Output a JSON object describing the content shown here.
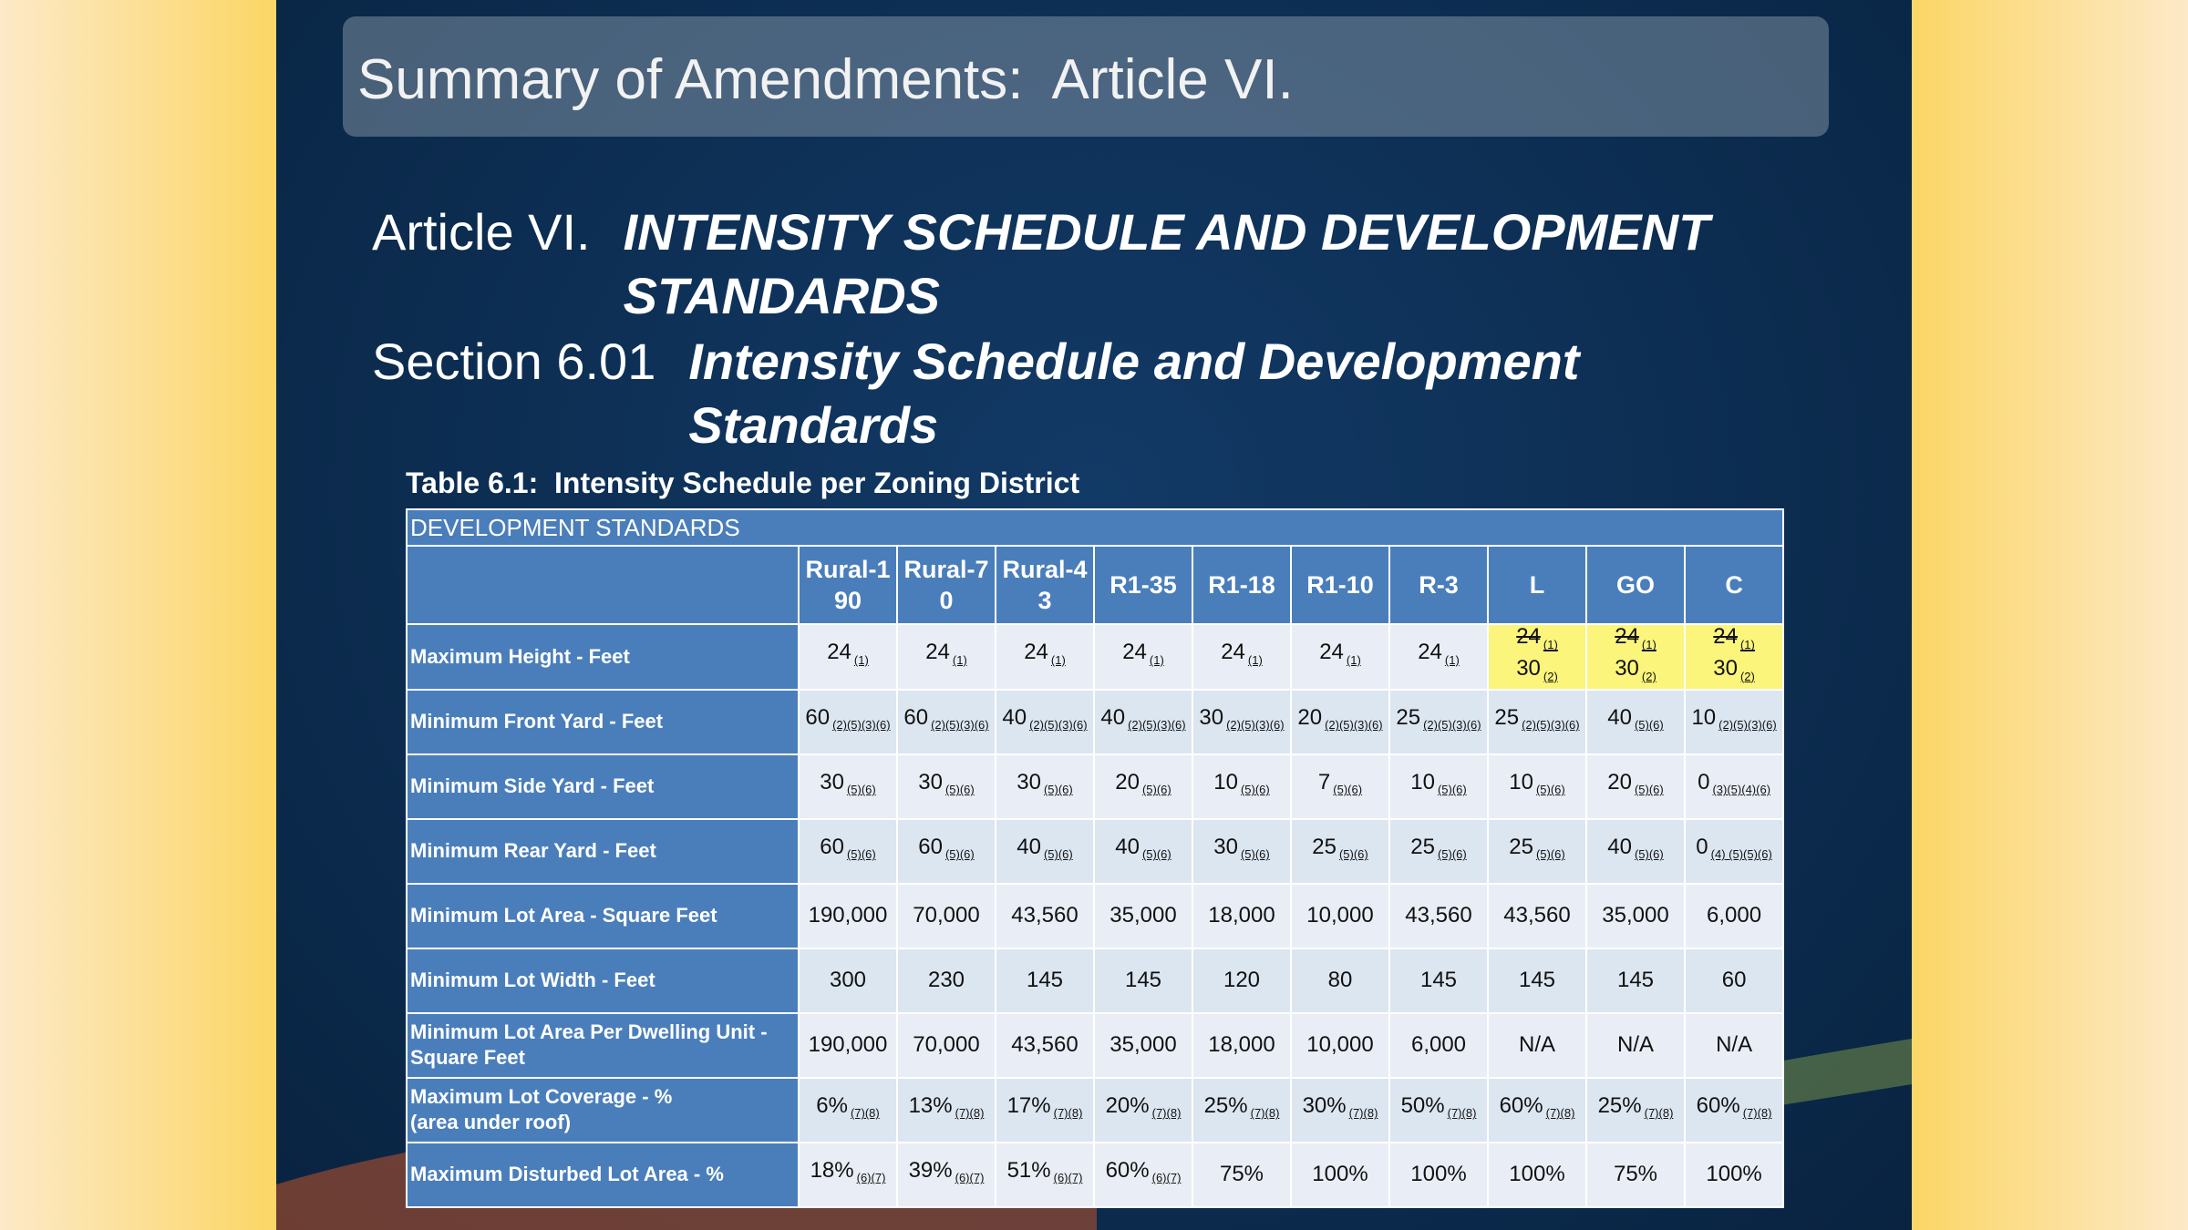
{
  "title": "Summary of Amendments:  Article VI.",
  "article": {
    "label": "Article VI.",
    "title": "INTENSITY SCHEDULE AND DEVELOPMENT STANDARDS"
  },
  "section": {
    "label": "Section 6.01",
    "title": "Intensity Schedule and Development Standards"
  },
  "table": {
    "caption": "Table 6.1:  Intensity Schedule per Zoning District",
    "header": "DEVELOPMENT STANDARDS",
    "columns": [
      "Rural-190",
      "Rural-70",
      "Rural-43",
      "R1-35",
      "R1-18",
      "R1-10",
      "R-3",
      "L",
      "GO",
      "C"
    ],
    "rows": [
      {
        "label": "Maximum Height - Feet",
        "cells": [
          {
            "text": "24",
            "note": "(1)"
          },
          {
            "text": "24",
            "note": "(1)"
          },
          {
            "text": "24",
            "note": "(1)"
          },
          {
            "text": "24",
            "note": "(1)"
          },
          {
            "text": "24",
            "note": "(1)"
          },
          {
            "text": "24",
            "note": "(1)"
          },
          {
            "text": "24",
            "note": "(1)"
          },
          {
            "old": {
              "text": "24",
              "note": "(1)"
            },
            "text": "30",
            "note": "(2)",
            "highlight": true
          },
          {
            "old": {
              "text": "24",
              "note": "(1)"
            },
            "text": "30",
            "note": "(2)",
            "highlight": true
          },
          {
            "old": {
              "text": "24",
              "note": "(1)"
            },
            "text": "30",
            "note": "(2)",
            "highlight": true
          }
        ]
      },
      {
        "label": "Minimum Front Yard - Feet",
        "cells": [
          {
            "text": "60",
            "note": "(2)(5)(3)(6)"
          },
          {
            "text": "60",
            "note": "(2)(5)(3)(6)"
          },
          {
            "text": "40",
            "note": "(2)(5)(3)(6)"
          },
          {
            "text": "40",
            "note": "(2)(5)(3)(6)"
          },
          {
            "text": "30",
            "note": "(2)(5)(3)(6)"
          },
          {
            "text": "20",
            "note": "(2)(5)(3)(6)"
          },
          {
            "text": "25",
            "note": "(2)(5)(3)(6)"
          },
          {
            "text": "25",
            "note": "(2)(5)(3)(6)"
          },
          {
            "text": "40",
            "note": "(5)(6)"
          },
          {
            "text": "10",
            "note": "(2)(5)(3)(6)"
          }
        ]
      },
      {
        "label": "Minimum Side Yard - Feet",
        "cells": [
          {
            "text": "30",
            "note": "(5)(6)"
          },
          {
            "text": "30",
            "note": "(5)(6)"
          },
          {
            "text": "30",
            "note": "(5)(6)"
          },
          {
            "text": "20",
            "note": "(5)(6)"
          },
          {
            "text": "10",
            "note": "(5)(6)"
          },
          {
            "text": "7",
            "note": "(5)(6)"
          },
          {
            "text": "10",
            "note": "(5)(6)"
          },
          {
            "text": "10",
            "note": "(5)(6)"
          },
          {
            "text": "20",
            "note": "(5)(6)"
          },
          {
            "text": "0",
            "note": "(3)(5)(4)(6)"
          }
        ]
      },
      {
        "label": "Minimum Rear Yard - Feet",
        "cells": [
          {
            "text": "60",
            "note": "(5)(6)"
          },
          {
            "text": "60",
            "note": "(5)(6)"
          },
          {
            "text": "40",
            "note": "(5)(6)"
          },
          {
            "text": "40",
            "note": "(5)(6)"
          },
          {
            "text": "30",
            "note": "(5)(6)"
          },
          {
            "text": "25",
            "note": "(5)(6)"
          },
          {
            "text": "25",
            "note": "(5)(6)"
          },
          {
            "text": "25",
            "note": "(5)(6)"
          },
          {
            "text": "40",
            "note": "(5)(6)"
          },
          {
            "text": "0",
            "note": "(4) (5)(5)(6)"
          }
        ]
      },
      {
        "label": "Minimum Lot Area - Square Feet",
        "cells": [
          {
            "text": "190,000"
          },
          {
            "text": "70,000"
          },
          {
            "text": "43,560"
          },
          {
            "text": "35,000"
          },
          {
            "text": "18,000"
          },
          {
            "text": "10,000"
          },
          {
            "text": "43,560"
          },
          {
            "text": "43,560"
          },
          {
            "text": "35,000"
          },
          {
            "text": "6,000"
          }
        ]
      },
      {
        "label": "Minimum Lot Width - Feet",
        "cells": [
          {
            "text": "300"
          },
          {
            "text": "230"
          },
          {
            "text": "145"
          },
          {
            "text": "145"
          },
          {
            "text": "120"
          },
          {
            "text": "80"
          },
          {
            "text": "145"
          },
          {
            "text": "145"
          },
          {
            "text": "145"
          },
          {
            "text": "60"
          }
        ]
      },
      {
        "label": "Minimum Lot Area Per Dwelling Unit - Square Feet",
        "cells": [
          {
            "text": "190,000"
          },
          {
            "text": "70,000"
          },
          {
            "text": "43,560"
          },
          {
            "text": "35,000"
          },
          {
            "text": "18,000"
          },
          {
            "text": "10,000"
          },
          {
            "text": "6,000"
          },
          {
            "text": "N/A"
          },
          {
            "text": "N/A"
          },
          {
            "text": "N/A"
          }
        ]
      },
      {
        "label": "Maximum Lot Coverage - %\n(area under roof)",
        "cells": [
          {
            "text": "6%",
            "note": "(7)(8)"
          },
          {
            "text": "13%",
            "note": "(7)(8)"
          },
          {
            "text": "17%",
            "note": "(7)(8)"
          },
          {
            "text": "20%",
            "note": "(7)(8)"
          },
          {
            "text": "25%",
            "note": "(7)(8)"
          },
          {
            "text": "30%",
            "note": "(7)(8)"
          },
          {
            "text": "50%",
            "note": "(7)(8)"
          },
          {
            "text": "60%",
            "note": "(7)(8)"
          },
          {
            "text": "25%",
            "note": "(7)(8)"
          },
          {
            "text": "60%",
            "note": "(7)(8)"
          }
        ]
      },
      {
        "label": "Maximum Disturbed Lot Area - %",
        "cells": [
          {
            "text": "18%",
            "note": "(6)(7)"
          },
          {
            "text": "39%",
            "note": "(6)(7)"
          },
          {
            "text": "51%",
            "note": "(6)(7)"
          },
          {
            "text": "60%",
            "note": "(6)(7)"
          },
          {
            "text": "75%"
          },
          {
            "text": "100%"
          },
          {
            "text": "100%"
          },
          {
            "text": "100%"
          },
          {
            "text": "75%"
          },
          {
            "text": "100%"
          }
        ]
      }
    ]
  }
}
